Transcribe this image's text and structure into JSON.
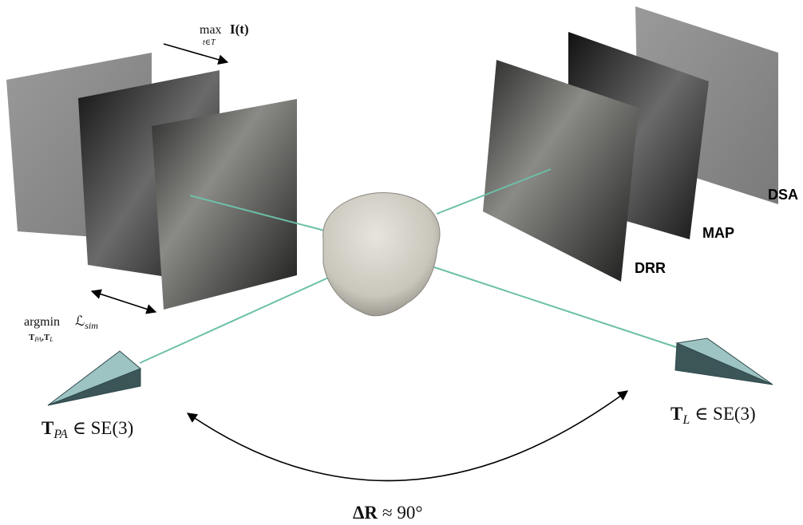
{
  "projection": {
    "operator": "max",
    "under": "t∈T",
    "expression": "I(t)"
  },
  "optimization": {
    "operator": "argmin",
    "loss": "ℒ",
    "loss_subscript": "sim",
    "under": [
      {
        "symbol": "T",
        "subscript": "PA"
      },
      {
        "symbol": "T",
        "subscript": "L"
      }
    ]
  },
  "image_labels": [
    "DSA",
    "MAP",
    "DRR"
  ],
  "cameras": [
    {
      "symbol": "T",
      "subscript": "PA",
      "relation": "∈ SE(3)"
    },
    {
      "symbol": "T",
      "subscript": "L",
      "relation": "∈ SE(3)"
    }
  ],
  "rotation": {
    "symbol": "ΔR",
    "relation": "≈ 90°"
  }
}
